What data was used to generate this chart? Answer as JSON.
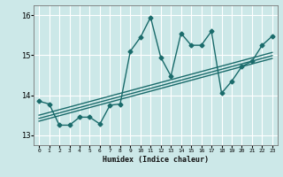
{
  "xlabel": "Humidex (Indice chaleur)",
  "ylabel": "",
  "background_color": "#cce8e8",
  "line_color": "#1a6b6b",
  "grid_color": "#ffffff",
  "xlim": [
    -0.5,
    23.5
  ],
  "ylim": [
    12.75,
    16.25
  ],
  "yticks": [
    13,
    14,
    15,
    16
  ],
  "xticks": [
    0,
    1,
    2,
    3,
    4,
    5,
    6,
    7,
    8,
    9,
    10,
    11,
    12,
    13,
    14,
    15,
    16,
    17,
    18,
    19,
    20,
    21,
    22,
    23
  ],
  "main_series_x": [
    0,
    1,
    2,
    3,
    4,
    5,
    6,
    7,
    8,
    9,
    10,
    11,
    12,
    13,
    14,
    15,
    16,
    17,
    18,
    19,
    20,
    21,
    22,
    23
  ],
  "main_series_y": [
    13.85,
    13.78,
    13.25,
    13.25,
    13.45,
    13.45,
    13.28,
    13.75,
    13.78,
    15.1,
    15.45,
    15.95,
    14.95,
    14.48,
    15.55,
    15.25,
    15.25,
    15.6,
    14.05,
    14.35,
    14.72,
    14.85,
    15.25,
    15.48
  ],
  "trend1_x": [
    0,
    23
  ],
  "trend1_y": [
    13.35,
    14.92
  ],
  "trend2_x": [
    0,
    23
  ],
  "trend2_y": [
    13.42,
    14.99
  ],
  "trend3_x": [
    0,
    23
  ],
  "trend3_y": [
    13.5,
    15.07
  ],
  "marker": "D",
  "markersize": 2.5,
  "linewidth": 1.0
}
